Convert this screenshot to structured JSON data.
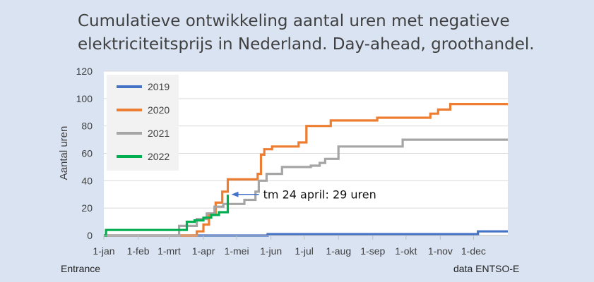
{
  "chart_data": {
    "type": "line",
    "title_lines": [
      "Cumulatieve ontwikkeling aantal uren met negatieve",
      "elektriciteitsprijs in Nederland. Day-ahead, groothandel."
    ],
    "ylabel": "Aantal uren",
    "ylim": [
      0,
      120
    ],
    "yticks": [
      0,
      20,
      40,
      60,
      80,
      100,
      120
    ],
    "xlim": [
      0,
      365
    ],
    "xticks": [
      {
        "label": "1-jan",
        "day": 0
      },
      {
        "label": "1-feb",
        "day": 31
      },
      {
        "label": "1-mrt",
        "day": 59
      },
      {
        "label": "1-apr",
        "day": 90
      },
      {
        "label": "1-mei",
        "day": 120
      },
      {
        "label": "1-jun",
        "day": 151
      },
      {
        "label": "1-jul",
        "day": 181
      },
      {
        "label": "1-aug",
        "day": 212
      },
      {
        "label": "1-sep",
        "day": 243
      },
      {
        "label": "1-okt",
        "day": 273
      },
      {
        "label": "1-nov",
        "day": 304
      },
      {
        "label": "1-dec",
        "day": 334
      }
    ],
    "grid": "horizontal",
    "legend_position": "top-left",
    "series": [
      {
        "name": "2019",
        "color": "#4472c4",
        "x": [
          0,
          148,
          148,
          338,
          338,
          365
        ],
        "y": [
          0,
          0,
          1,
          1,
          3,
          3
        ]
      },
      {
        "name": "2020",
        "color": "#ed7d31",
        "x": [
          0,
          84,
          84,
          90,
          90,
          95,
          95,
          101,
          101,
          107,
          107,
          112,
          112,
          139,
          139,
          142,
          142,
          145,
          145,
          152,
          152,
          176,
          176,
          183,
          183,
          205,
          205,
          247,
          247,
          295,
          295,
          302,
          302,
          313,
          313,
          365
        ],
        "y": [
          0,
          0,
          3,
          3,
          8,
          8,
          16,
          16,
          24,
          24,
          32,
          32,
          41,
          41,
          45,
          45,
          59,
          59,
          63,
          63,
          65,
          65,
          68,
          68,
          80,
          80,
          84,
          84,
          86,
          86,
          89,
          89,
          92,
          92,
          96,
          96
        ]
      },
      {
        "name": "2021",
        "color": "#a5a5a5",
        "x": [
          0,
          68,
          68,
          84,
          84,
          93,
          93,
          100,
          100,
          108,
          108,
          127,
          127,
          137,
          137,
          140,
          140,
          147,
          147,
          161,
          161,
          187,
          187,
          195,
          195,
          200,
          200,
          212,
          212,
          270,
          270,
          365
        ],
        "y": [
          0,
          0,
          7,
          7,
          12,
          12,
          16,
          16,
          21,
          21,
          23,
          23,
          26,
          26,
          32,
          32,
          40,
          40,
          45,
          45,
          50,
          50,
          51,
          51,
          53,
          53,
          56,
          56,
          65,
          65,
          70,
          70
        ]
      },
      {
        "name": "2022",
        "color": "#00b050",
        "x": [
          0,
          2,
          2,
          75,
          75,
          82,
          82,
          90,
          90,
          97,
          97,
          104,
          104,
          112,
          112,
          113
        ],
        "y": [
          0,
          0,
          4,
          4,
          10,
          10,
          11,
          11,
          13,
          13,
          15,
          15,
          17,
          17,
          29,
          29
        ]
      }
    ],
    "annotations": [
      {
        "text": "tm 24 april: 29 uren",
        "x": 114,
        "y": 29
      }
    ]
  },
  "footer": {
    "left": "Entrance",
    "right": "data ENTSO-E"
  }
}
